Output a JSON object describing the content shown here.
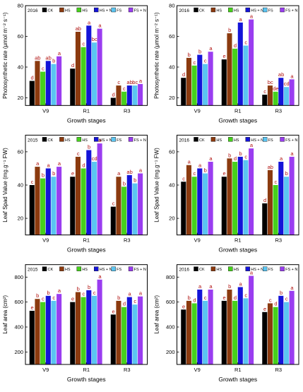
{
  "chart_data": [
    {
      "type": "bar",
      "year": "2016",
      "categories": [
        "V9",
        "R1",
        "R3"
      ],
      "series": [
        {
          "name": "CK",
          "values": [
            31,
            39,
            20
          ],
          "letters": [
            "d",
            "d",
            "d"
          ]
        },
        {
          "name": "HS",
          "values": [
            44,
            63,
            28
          ],
          "letters": [
            "ab",
            "ab",
            "c"
          ]
        },
        {
          "name": "HS",
          "values": [
            37,
            53,
            24
          ],
          "letters": [
            "c",
            "c",
            "c"
          ]
        },
        {
          "name": "HS + N",
          "values": [
            44,
            67,
            28
          ],
          "letters": [
            "ab",
            "a",
            "ab"
          ]
        },
        {
          "name": "FS",
          "values": [
            42,
            56,
            28
          ],
          "letters": [
            "b",
            "bc",
            "bc"
          ]
        },
        {
          "name": "FS + N",
          "values": [
            47,
            65,
            29
          ],
          "letters": [
            "a",
            "a",
            "a"
          ]
        }
      ],
      "ylabel": "Photosynthetic rate (μmol m⁻² s⁻¹)",
      "xlabel": "Growth stages",
      "ylim": [
        15,
        80
      ],
      "yticks": [
        20,
        40,
        60,
        80
      ]
    },
    {
      "type": "bar",
      "year": "2016",
      "categories": [
        "V9",
        "R1",
        "R3"
      ],
      "series": [
        {
          "name": "CK",
          "values": [
            33,
            45,
            22
          ],
          "letters": [
            "d",
            "e",
            "c"
          ]
        },
        {
          "name": "HS",
          "values": [
            46,
            62,
            28
          ],
          "letters": [
            "b",
            "b",
            "bc"
          ]
        },
        {
          "name": "HS",
          "values": [
            41,
            52,
            24
          ],
          "letters": [
            "c",
            "d",
            "de"
          ]
        },
        {
          "name": "HS + N",
          "values": [
            48,
            69,
            33
          ],
          "letters": [
            "b",
            "a",
            "ab"
          ]
        },
        {
          "name": "FS",
          "values": [
            42,
            54,
            27
          ],
          "letters": [
            "c",
            "c",
            "cd"
          ]
        },
        {
          "name": "FS + N",
          "values": [
            50,
            71,
            32
          ],
          "letters": [
            "a",
            "a",
            "a"
          ]
        }
      ],
      "ylabel": "Photosynthetic rate (μmol m⁻² s⁻¹)",
      "xlabel": "Growth stages",
      "ylim": [
        15,
        80
      ],
      "yticks": [
        20,
        40,
        60,
        80
      ]
    },
    {
      "type": "bar",
      "year": "2015",
      "categories": [
        "V9",
        "R1",
        "R3"
      ],
      "series": [
        {
          "name": "CK",
          "values": [
            40,
            45,
            27
          ],
          "letters": [
            "c",
            "e",
            "c"
          ]
        },
        {
          "name": "HS",
          "values": [
            51,
            57,
            45
          ],
          "letters": [
            "a",
            "c",
            "a"
          ]
        },
        {
          "name": "HS",
          "values": [
            44,
            50,
            39
          ],
          "letters": [
            "b",
            "d",
            "b"
          ]
        },
        {
          "name": "HS + N",
          "values": [
            50,
            61,
            46
          ],
          "letters": [
            "a",
            "b",
            "ab"
          ]
        },
        {
          "name": "FS",
          "values": [
            45,
            54,
            41
          ],
          "letters": [
            "b",
            "cd",
            "b"
          ]
        },
        {
          "name": "FS + N",
          "values": [
            51,
            65,
            47
          ],
          "letters": [
            "a",
            "a",
            "a"
          ]
        }
      ],
      "ylabel": "Leaf Spad Value (mg.g⁻¹ FW)",
      "xlabel": "Growth stages",
      "ylim": [
        10,
        70
      ],
      "yticks": [
        20,
        40,
        60
      ]
    },
    {
      "type": "bar",
      "year": "2016",
      "categories": [
        "V9",
        "R1",
        "R3"
      ],
      "series": [
        {
          "name": "CK",
          "values": [
            42,
            45,
            29
          ],
          "letters": [
            "c",
            "e",
            "d"
          ]
        },
        {
          "name": "HS",
          "values": [
            52,
            56,
            49
          ],
          "letters": [
            "a",
            "b",
            "ab"
          ]
        },
        {
          "name": "HS",
          "values": [
            45,
            54,
            40
          ],
          "letters": [
            "c",
            "d",
            "c"
          ]
        },
        {
          "name": "HS + N",
          "values": [
            50,
            57,
            54
          ],
          "letters": [
            "a",
            "b",
            "a"
          ]
        },
        {
          "name": "FS",
          "values": [
            47,
            55,
            45
          ],
          "letters": [
            "b",
            "c",
            "b"
          ]
        },
        {
          "name": "FS + N",
          "values": [
            54,
            62,
            57
          ],
          "letters": [
            "a",
            "a",
            "a"
          ]
        }
      ],
      "ylabel": "Leaf Spad Value (mg.g⁻¹ FW)",
      "xlabel": "Growth stages",
      "ylim": [
        10,
        70
      ],
      "yticks": [
        20,
        40,
        60
      ]
    },
    {
      "type": "bar",
      "year": "2015",
      "categories": [
        "V9",
        "R1",
        "R3"
      ],
      "series": [
        {
          "name": "CK",
          "values": [
            530,
            600,
            500
          ],
          "letters": [
            "e",
            "e",
            "e"
          ]
        },
        {
          "name": "HS",
          "values": [
            625,
            680,
            610
          ],
          "letters": [
            "b",
            "b",
            "b"
          ]
        },
        {
          "name": "HS",
          "values": [
            600,
            640,
            560
          ],
          "letters": [
            "c",
            "c",
            "d"
          ]
        },
        {
          "name": "HS + N",
          "values": [
            650,
            695,
            640
          ],
          "letters": [
            "b",
            "b",
            "a"
          ]
        },
        {
          "name": "FS",
          "values": [
            610,
            650,
            580
          ],
          "letters": [
            "c",
            "c",
            "c"
          ]
        },
        {
          "name": "FS + N",
          "values": [
            665,
            780,
            645
          ],
          "letters": [
            "a",
            "a",
            "a"
          ]
        }
      ],
      "ylabel": "Leaf area (cm²)",
      "xlabel": "Growth stages",
      "ylim": [
        100,
        900
      ],
      "yticks": [
        200,
        400,
        600,
        800
      ]
    },
    {
      "type": "bar",
      "year": "2016",
      "categories": [
        "V9",
        "R1",
        "R3"
      ],
      "series": [
        {
          "name": "CK",
          "values": [
            540,
            610,
            520
          ],
          "letters": [
            "e",
            "e",
            "e"
          ]
        },
        {
          "name": "HS",
          "values": [
            610,
            700,
            590
          ],
          "letters": [
            "b",
            "b",
            "c"
          ]
        },
        {
          "name": "HS",
          "values": [
            590,
            610,
            560
          ],
          "letters": [
            "d",
            "d",
            "d"
          ]
        },
        {
          "name": "HS + N",
          "values": [
            700,
            720,
            650
          ],
          "letters": [
            "a",
            "a",
            "b"
          ]
        },
        {
          "name": "FS",
          "values": [
            610,
            630,
            600
          ],
          "letters": [
            "c",
            "c",
            "c"
          ]
        },
        {
          "name": "FS + N",
          "values": [
            700,
            810,
            690
          ],
          "letters": [
            "a",
            "a",
            "a"
          ]
        }
      ],
      "ylabel": "Leaf area (cm²)",
      "xlabel": "Growth stages",
      "ylim": [
        100,
        900
      ],
      "yticks": [
        200,
        400,
        600,
        800
      ]
    }
  ],
  "colors": [
    "#000000",
    "#8b3a0f",
    "#46d11c",
    "#1414d8",
    "#5bc5f2",
    "#9a3df0"
  ]
}
